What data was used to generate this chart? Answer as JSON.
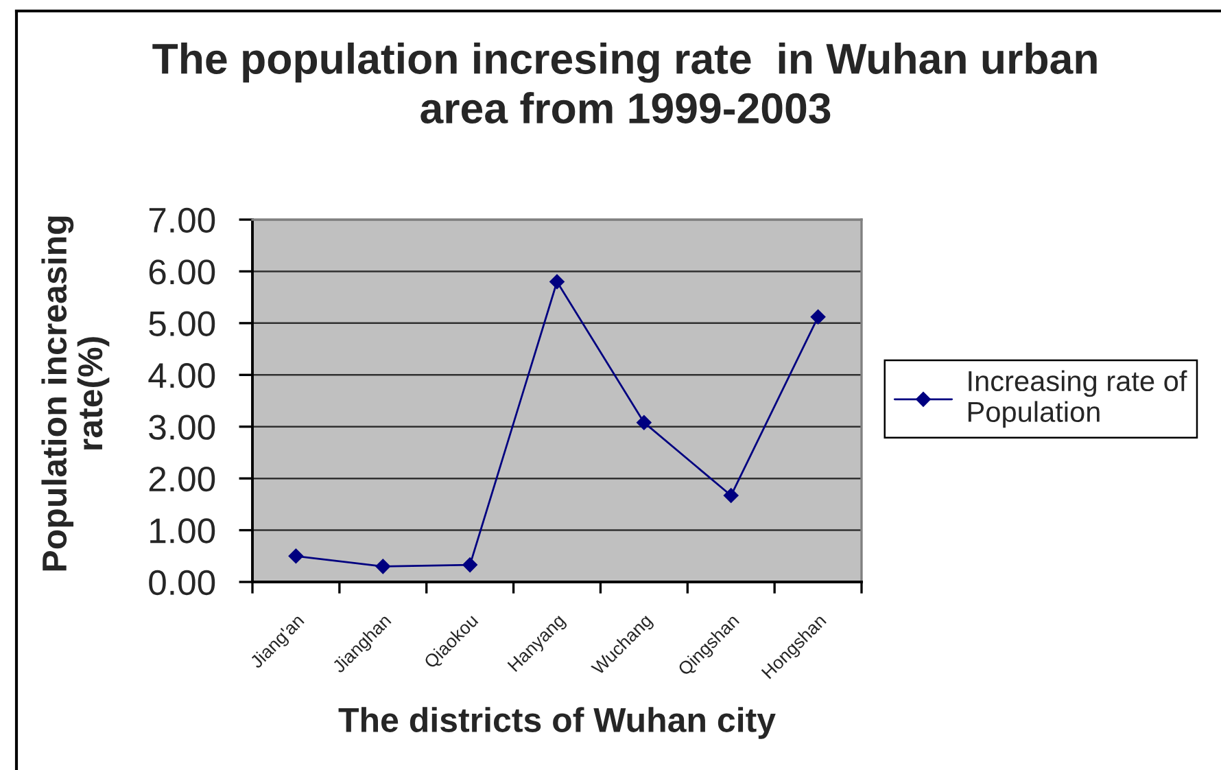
{
  "chart_data": {
    "type": "line",
    "title": "The population incresing rate  in Wuhan urban\narea from 1999-2003",
    "xlabel": "The districts of Wuhan city",
    "ylabel": "Population increasing\nrate(%)",
    "categories": [
      "Jiang'an",
      "Jianghan",
      "Qiaokou",
      "Hanyang",
      "Wuchang",
      "Qingshan",
      "Hongshan"
    ],
    "series": [
      {
        "name": "Increasing rate of\nPopulation",
        "color": "#000080",
        "values": [
          0.5,
          0.3,
          0.33,
          5.8,
          3.08,
          1.67,
          5.12
        ]
      }
    ],
    "ylim": [
      0,
      7
    ],
    "yticks": [
      {
        "value": 0,
        "label": "0.00"
      },
      {
        "value": 1,
        "label": "1.00"
      },
      {
        "value": 2,
        "label": "2.00"
      },
      {
        "value": 3,
        "label": "3.00"
      },
      {
        "value": 4,
        "label": "4.00"
      },
      {
        "value": 5,
        "label": "5.00"
      },
      {
        "value": 6,
        "label": "6.00"
      },
      {
        "value": 7,
        "label": "7.00"
      }
    ],
    "grid": "y",
    "legend": "right",
    "marker": "diamond",
    "line_style": "solid"
  }
}
